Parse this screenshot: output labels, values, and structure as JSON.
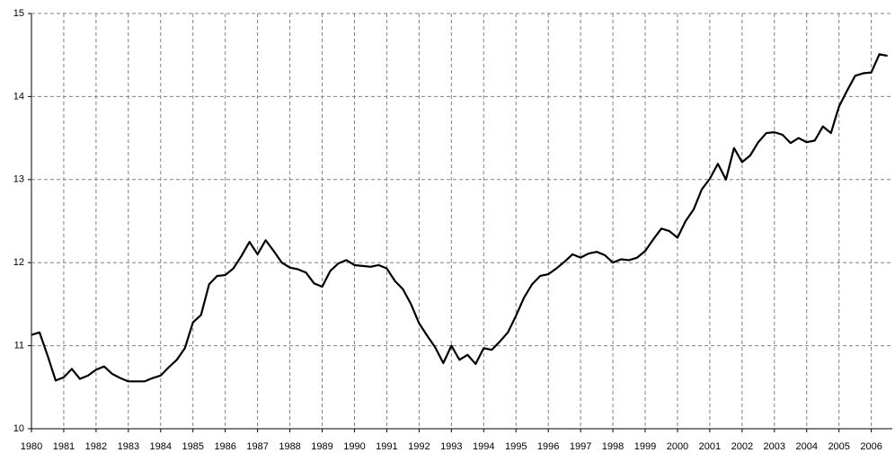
{
  "chart_data": {
    "type": "line",
    "x": [
      1980,
      1980.25,
      1980.5,
      1980.75,
      1981,
      1981.25,
      1981.5,
      1981.75,
      1982,
      1982.25,
      1982.5,
      1982.75,
      1983,
      1983.25,
      1983.5,
      1983.75,
      1984,
      1984.25,
      1984.5,
      1984.75,
      1985,
      1985.25,
      1985.5,
      1985.75,
      1986,
      1986.25,
      1986.5,
      1986.75,
      1987,
      1987.25,
      1987.5,
      1987.75,
      1988,
      1988.25,
      1988.5,
      1988.75,
      1989,
      1989.25,
      1989.5,
      1989.75,
      1990,
      1990.25,
      1990.5,
      1990.75,
      1991,
      1991.25,
      1991.5,
      1991.75,
      1992,
      1992.25,
      1992.5,
      1992.75,
      1993,
      1993.25,
      1993.5,
      1993.75,
      1994,
      1994.25,
      1994.5,
      1994.75,
      1995,
      1995.25,
      1995.5,
      1995.75,
      1996,
      1996.25,
      1996.5,
      1996.75,
      1997,
      1997.25,
      1997.5,
      1997.75,
      1998,
      1998.25,
      1998.5,
      1998.75,
      1999,
      1999.25,
      1999.5,
      1999.75,
      2000,
      2000.25,
      2000.5,
      2000.75,
      2001,
      2001.25,
      2001.5,
      2001.75,
      2002,
      2002.25,
      2002.5,
      2002.75,
      2003,
      2003.25,
      2003.5,
      2003.75,
      2004,
      2004.25,
      2004.5,
      2004.75,
      2005,
      2005.25,
      2005.5,
      2005.75,
      2006,
      2006.25,
      2006.5
    ],
    "values": [
      11.13,
      11.16,
      10.88,
      10.58,
      10.62,
      10.72,
      10.6,
      10.64,
      10.71,
      10.75,
      10.66,
      10.61,
      10.57,
      10.57,
      10.57,
      10.61,
      10.64,
      10.74,
      10.83,
      10.97,
      11.28,
      11.37,
      11.74,
      11.84,
      11.85,
      11.93,
      12.08,
      12.25,
      12.1,
      12.27,
      12.14,
      12.0,
      11.94,
      11.92,
      11.88,
      11.75,
      11.71,
      11.9,
      11.99,
      12.03,
      11.97,
      11.96,
      11.95,
      11.97,
      11.93,
      11.78,
      11.68,
      11.5,
      11.27,
      11.12,
      10.98,
      10.79,
      11.0,
      10.83,
      10.89,
      10.78,
      10.97,
      10.95,
      11.05,
      11.16,
      11.36,
      11.58,
      11.74,
      11.84,
      11.86,
      11.93,
      12.01,
      12.1,
      12.06,
      12.11,
      12.13,
      12.09,
      12.0,
      12.04,
      12.03,
      12.06,
      12.14,
      12.28,
      12.41,
      12.38,
      12.3,
      12.5,
      12.64,
      12.88,
      13.01,
      13.19,
      13.0,
      13.38,
      13.21,
      13.29,
      13.45,
      13.56,
      13.57,
      13.54,
      13.44,
      13.5,
      13.45,
      13.47,
      13.64,
      13.56,
      13.88,
      14.07,
      14.25,
      14.28,
      14.29,
      14.51,
      14.49
    ],
    "color": "#000000",
    "xlim": [
      1980,
      2006.65
    ],
    "xticks": [
      1980,
      1981,
      1982,
      1983,
      1984,
      1985,
      1986,
      1987,
      1988,
      1989,
      1990,
      1991,
      1992,
      1993,
      1994,
      1995,
      1996,
      1997,
      1998,
      1999,
      2000,
      2001,
      2002,
      2003,
      2004,
      2005,
      2006
    ],
    "ylim": [
      10,
      15
    ],
    "yticks": [
      10,
      11,
      12,
      13,
      14,
      15
    ],
    "grid": true
  }
}
